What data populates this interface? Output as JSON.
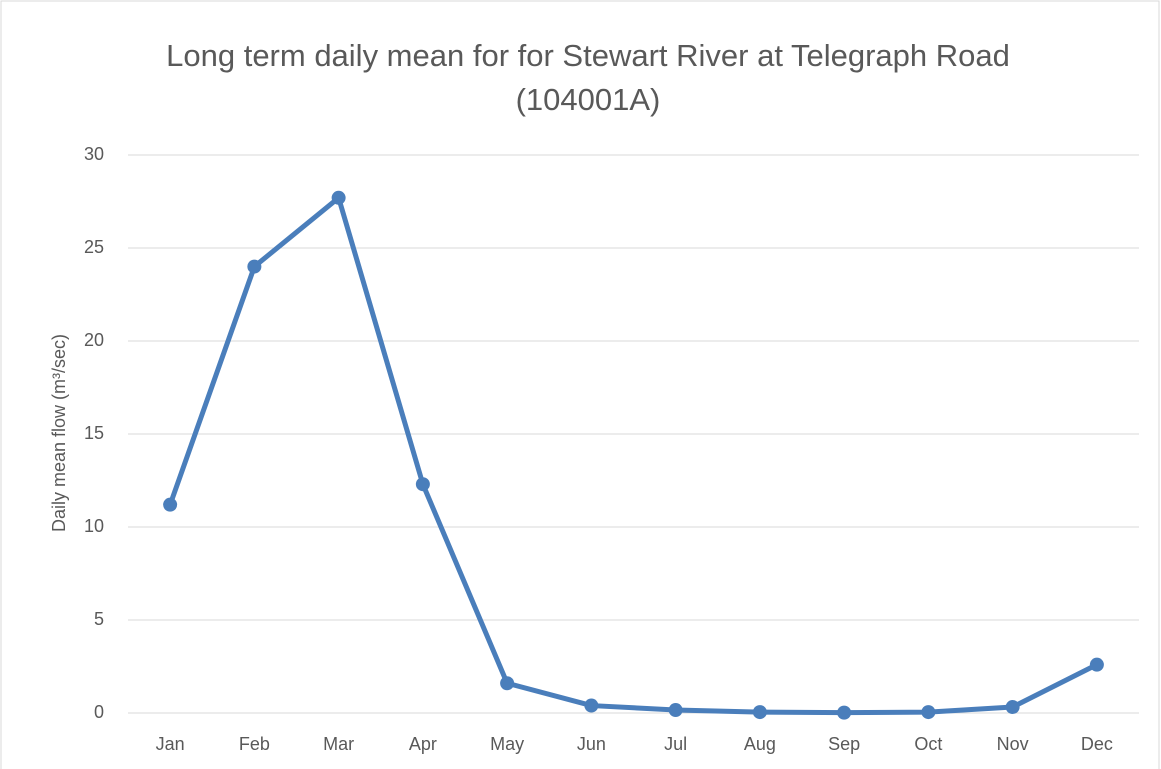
{
  "chart_data": {
    "type": "line",
    "title": "Long term daily mean for for Stewart River at Telegraph Road (104001A)",
    "ylabel": "Daily mean flow (m³/sec)",
    "categories": [
      "Jan",
      "Feb",
      "Mar",
      "Apr",
      "May",
      "Jun",
      "Jul",
      "Aug",
      "Sep",
      "Oct",
      "Nov",
      "Dec"
    ],
    "series": [
      {
        "name": "Daily mean flow",
        "color": "#4a7ebb",
        "values": [
          11.2,
          24.0,
          27.7,
          12.3,
          1.6,
          0.4,
          0.16,
          0.05,
          0.02,
          0.05,
          0.32,
          2.6
        ]
      }
    ],
    "ylim": [
      0,
      30
    ],
    "yticks": [
      0,
      5,
      10,
      15,
      20,
      25,
      30
    ],
    "grid": true
  }
}
